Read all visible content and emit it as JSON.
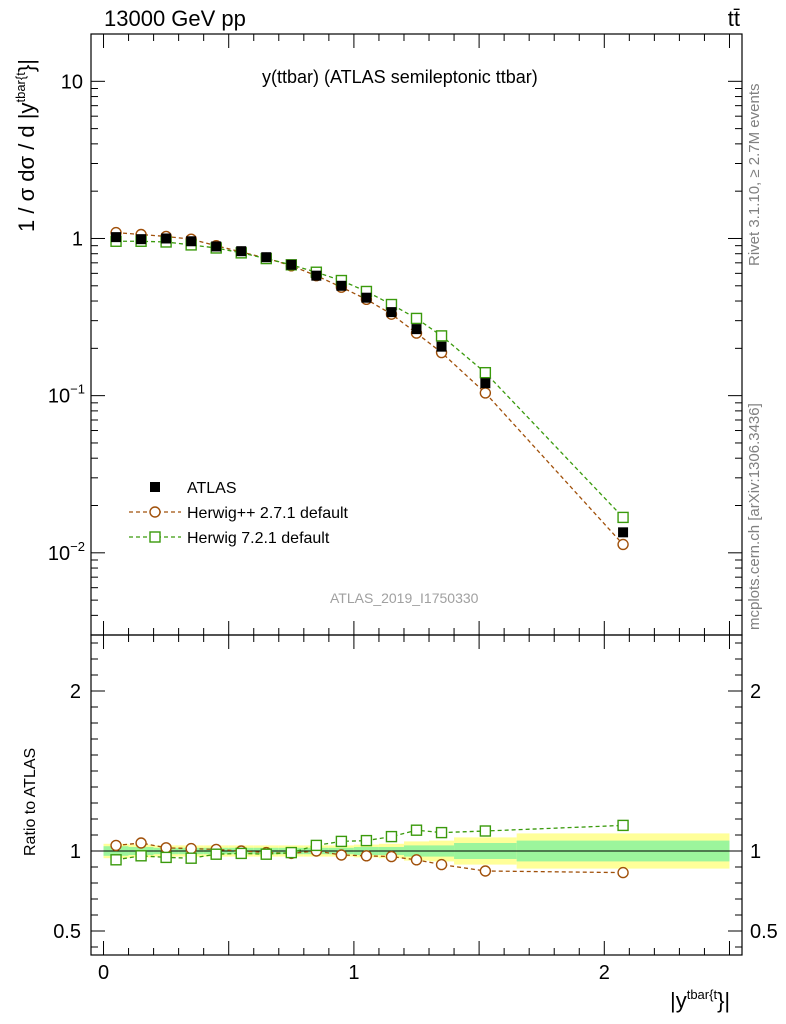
{
  "header": {
    "left": "13000 GeV pp",
    "right": "tt̄"
  },
  "side_labels": {
    "rivet": "Rivet 3.1.10, ≥ 2.7M events",
    "mcplots": "mcplots.cern.ch [arXiv:1306.3436]"
  },
  "watermark": "ATLAS_2019_I1750330",
  "colors": {
    "data": "#000000",
    "herwigpp": "#a0500a",
    "herwig7": "#3a9a0c",
    "band_inner": "#9cf59c",
    "band_outer": "#ffff99"
  },
  "chart_data": [
    {
      "type": "scatter",
      "title": "y(ttbar) (ATLAS semileptonic ttbar)",
      "xlabel": "|y^{tbar{t}}|",
      "ylabel": "1 / σ dσ / d |y^{tbar{t}}|",
      "xlabel_text": {
        "main": "|y",
        "sup": "tbar{t",
        "tail": "}|"
      },
      "ylabel_text": {
        "main": "1 / σ dσ / d |y",
        "sup": "tbar{t",
        "tail": "}|"
      },
      "xlim": [
        -0.05,
        2.55
      ],
      "ylim": [
        0.003,
        20
      ],
      "yscale": "log",
      "yticks": [
        {
          "v": 10,
          "base": "10",
          "exp": ""
        },
        {
          "v": 1,
          "base": "1",
          "exp": ""
        },
        {
          "v": 0.1,
          "base": "10",
          "exp": "−1"
        },
        {
          "v": 0.01,
          "base": "10",
          "exp": "−2"
        }
      ],
      "bin_edges": [
        0,
        0.1,
        0.2,
        0.3,
        0.4,
        0.5,
        0.6,
        0.7,
        0.8,
        0.9,
        1.0,
        1.1,
        1.2,
        1.3,
        1.4,
        1.65,
        2.5
      ],
      "x": [
        0.05,
        0.15,
        0.25,
        0.35,
        0.45,
        0.55,
        0.65,
        0.75,
        0.85,
        0.95,
        1.05,
        1.15,
        1.25,
        1.35,
        1.525,
        2.075
      ],
      "series": [
        {
          "name": "ATLAS",
          "marker": "filled-square",
          "values": [
            1.02,
            0.99,
            1.0,
            0.96,
            0.89,
            0.83,
            0.76,
            0.68,
            0.58,
            0.5,
            0.42,
            0.34,
            0.265,
            0.205,
            0.12,
            0.0135
          ]
        },
        {
          "name": "Herwig++ 2.7.1 default",
          "marker": "open-circle",
          "linestyle": "dashed",
          "values": [
            1.09,
            1.06,
            1.03,
            0.99,
            0.9,
            0.82,
            0.75,
            0.67,
            0.58,
            0.49,
            0.41,
            0.33,
            0.25,
            0.188,
            0.104,
            0.0113
          ]
        },
        {
          "name": "Herwig 7.2.1 default",
          "marker": "open-square",
          "linestyle": "dashed",
          "values": [
            0.96,
            0.96,
            0.95,
            0.91,
            0.87,
            0.81,
            0.745,
            0.68,
            0.61,
            0.54,
            0.46,
            0.38,
            0.31,
            0.24,
            0.14,
            0.0168
          ]
        }
      ],
      "legend": [
        "ATLAS",
        "Herwig++ 2.7.1 default",
        "Herwig 7.2.1 default"
      ],
      "legend_position": "bottom-left"
    },
    {
      "type": "scatter",
      "title": "",
      "xlabel": "|y^{tbar{t}}|",
      "ylabel": "Ratio to ATLAS",
      "xlim": [
        -0.05,
        2.55
      ],
      "ylim": [
        0.35,
        2.35
      ],
      "yticks": [
        {
          "v": 2,
          "label": "2"
        },
        {
          "v": 1,
          "label": "1"
        },
        {
          "v": 0.5,
          "label": "0.5"
        }
      ],
      "xticks": [
        {
          "v": 0,
          "label": "0"
        },
        {
          "v": 1,
          "label": "1"
        },
        {
          "v": 2,
          "label": "2"
        }
      ],
      "bin_edges": [
        0,
        0.1,
        0.2,
        0.3,
        0.4,
        0.5,
        0.6,
        0.7,
        0.8,
        0.9,
        1.0,
        1.1,
        1.2,
        1.3,
        1.4,
        1.65,
        2.5
      ],
      "x": [
        0.05,
        0.15,
        0.25,
        0.35,
        0.45,
        0.55,
        0.65,
        0.75,
        0.85,
        0.95,
        1.05,
        1.15,
        1.25,
        1.35,
        1.525,
        2.075
      ],
      "band_inner_halfwidth": [
        0.03,
        0.025,
        0.02,
        0.02,
        0.02,
        0.02,
        0.02,
        0.02,
        0.02,
        0.02,
        0.025,
        0.025,
        0.035,
        0.035,
        0.05,
        0.065
      ],
      "band_outer_halfwidth": [
        0.045,
        0.04,
        0.035,
        0.035,
        0.035,
        0.035,
        0.035,
        0.035,
        0.035,
        0.035,
        0.04,
        0.045,
        0.06,
        0.065,
        0.085,
        0.11
      ],
      "series": [
        {
          "name": "Herwig++ 2.7.1 default",
          "marker": "open-circle",
          "linestyle": "dashed",
          "values": [
            1.035,
            1.05,
            1.02,
            1.015,
            1.01,
            1.0,
            0.99,
            0.985,
            1.0,
            0.975,
            0.97,
            0.965,
            0.945,
            0.915,
            0.875,
            0.865
          ]
        },
        {
          "name": "Herwig 7.2.1 default",
          "marker": "open-square",
          "linestyle": "dashed",
          "values": [
            0.945,
            0.97,
            0.96,
            0.955,
            0.98,
            0.985,
            0.98,
            0.99,
            1.035,
            1.06,
            1.065,
            1.09,
            1.13,
            1.115,
            1.125,
            1.16
          ]
        }
      ]
    }
  ]
}
